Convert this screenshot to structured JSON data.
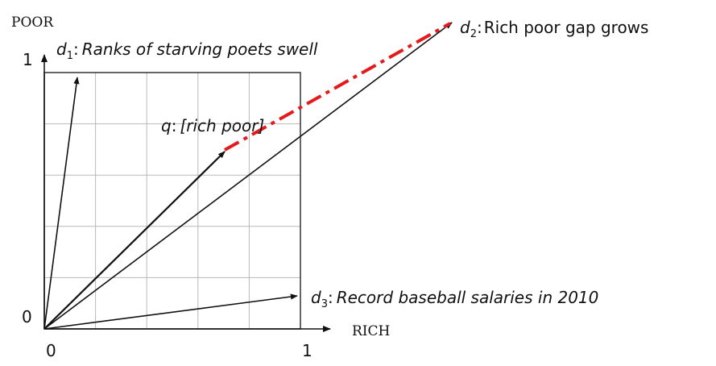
{
  "axes": {
    "y_axis_label": "POOR",
    "x_axis_label": "RICH",
    "y_tick_top": "1",
    "y_tick_origin": "0",
    "x_tick_origin": "0",
    "x_tick_right": "1"
  },
  "vectors": {
    "d1": {
      "name": "d",
      "sub": "1",
      "text": "Ranks of starving poets swell"
    },
    "d2": {
      "name": "d",
      "sub": "2",
      "text": "Rich poor gap grows"
    },
    "d3": {
      "name": "d",
      "sub": "3",
      "text": "Record baseball salaries in 2010"
    },
    "q": {
      "name": "q",
      "text": "[rich poor]"
    }
  },
  "colors": {
    "ink": "#111111",
    "grid": "#b8b8b8",
    "distance_line": "#e41a1c"
  },
  "grid": {
    "divisions": 5
  }
}
